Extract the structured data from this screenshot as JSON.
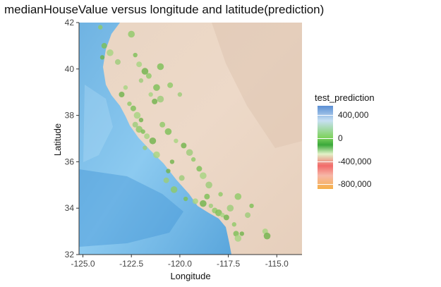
{
  "title": "medianHouseValue versus longitude and latitude(prediction)",
  "chart_data": {
    "type": "scatter",
    "title": "medianHouseValue versus longitude and latitude(prediction)",
    "xlabel": "Longitude",
    "ylabel": "Latitude",
    "xlim": [
      -125.2,
      -113.7
    ],
    "ylim": [
      32,
      42
    ],
    "x_ticks": [
      -125.0,
      -122.5,
      -120.0,
      -117.5,
      -115.0
    ],
    "x_tick_labels": [
      "-125.0",
      "-122.5",
      "-120.0",
      "-117.5",
      "-115.0"
    ],
    "y_ticks": [
      32,
      34,
      36,
      38,
      40,
      42
    ],
    "y_tick_labels": [
      "32",
      "34",
      "36",
      "38",
      "40",
      "42"
    ],
    "grid": false,
    "legend": {
      "placement": "right",
      "title": "test_prediction",
      "labels": [
        "400,000",
        "0",
        "-400,000",
        "-800,000"
      ],
      "values": [
        400000,
        0,
        -400000,
        -800000
      ]
    },
    "series": [
      {
        "points": [
          [
            -124.1,
            41.8
          ],
          [
            -123.9,
            41.0
          ],
          [
            -123.6,
            40.7
          ],
          [
            -124.0,
            40.5
          ],
          [
            -123.2,
            40.3
          ],
          [
            -122.5,
            41.5
          ],
          [
            -122.3,
            40.6
          ],
          [
            -122.1,
            40.2
          ],
          [
            -121.8,
            39.9
          ],
          [
            -122.0,
            39.5
          ],
          [
            -121.6,
            39.7
          ],
          [
            -121.2,
            39.2
          ],
          [
            -121.5,
            38.9
          ],
          [
            -121.3,
            38.6
          ],
          [
            -121.0,
            38.7
          ],
          [
            -122.6,
            38.5
          ],
          [
            -122.4,
            38.3
          ],
          [
            -122.2,
            38.0
          ],
          [
            -122.0,
            37.8
          ],
          [
            -122.3,
            37.6
          ],
          [
            -122.1,
            37.4
          ],
          [
            -121.9,
            37.3
          ],
          [
            -121.7,
            37.1
          ],
          [
            -121.4,
            36.9
          ],
          [
            -121.8,
            36.6
          ],
          [
            -120.9,
            37.6
          ],
          [
            -120.6,
            37.3
          ],
          [
            -120.2,
            36.9
          ],
          [
            -119.8,
            36.7
          ],
          [
            -119.5,
            36.4
          ],
          [
            -119.3,
            36.1
          ],
          [
            -119.0,
            35.7
          ],
          [
            -118.8,
            35.4
          ],
          [
            -120.6,
            35.6
          ],
          [
            -120.7,
            35.2
          ],
          [
            -120.3,
            34.8
          ],
          [
            -119.7,
            34.4
          ],
          [
            -119.2,
            34.3
          ],
          [
            -118.8,
            34.2
          ],
          [
            -118.4,
            34.1
          ],
          [
            -118.2,
            33.9
          ],
          [
            -118.0,
            33.8
          ],
          [
            -117.8,
            33.7
          ],
          [
            -117.6,
            33.6
          ],
          [
            -117.4,
            34.0
          ],
          [
            -117.2,
            33.3
          ],
          [
            -117.1,
            32.9
          ],
          [
            -117.0,
            32.7
          ],
          [
            -116.8,
            32.9
          ],
          [
            -116.5,
            33.7
          ],
          [
            -117.0,
            34.5
          ],
          [
            -116.3,
            34.1
          ],
          [
            -115.6,
            33.0
          ],
          [
            -115.5,
            32.8
          ],
          [
            -120.0,
            38.9
          ],
          [
            -120.5,
            39.3
          ],
          [
            -121.0,
            40.1
          ],
          [
            -122.8,
            39.2
          ],
          [
            -123.0,
            38.9
          ],
          [
            -118.5,
            35.0
          ],
          [
            -117.9,
            34.6
          ],
          [
            -118.6,
            34.5
          ],
          [
            -121.2,
            36.3
          ],
          [
            -120.4,
            36.0
          ],
          [
            -119.9,
            35.3
          ]
        ]
      }
    ]
  }
}
